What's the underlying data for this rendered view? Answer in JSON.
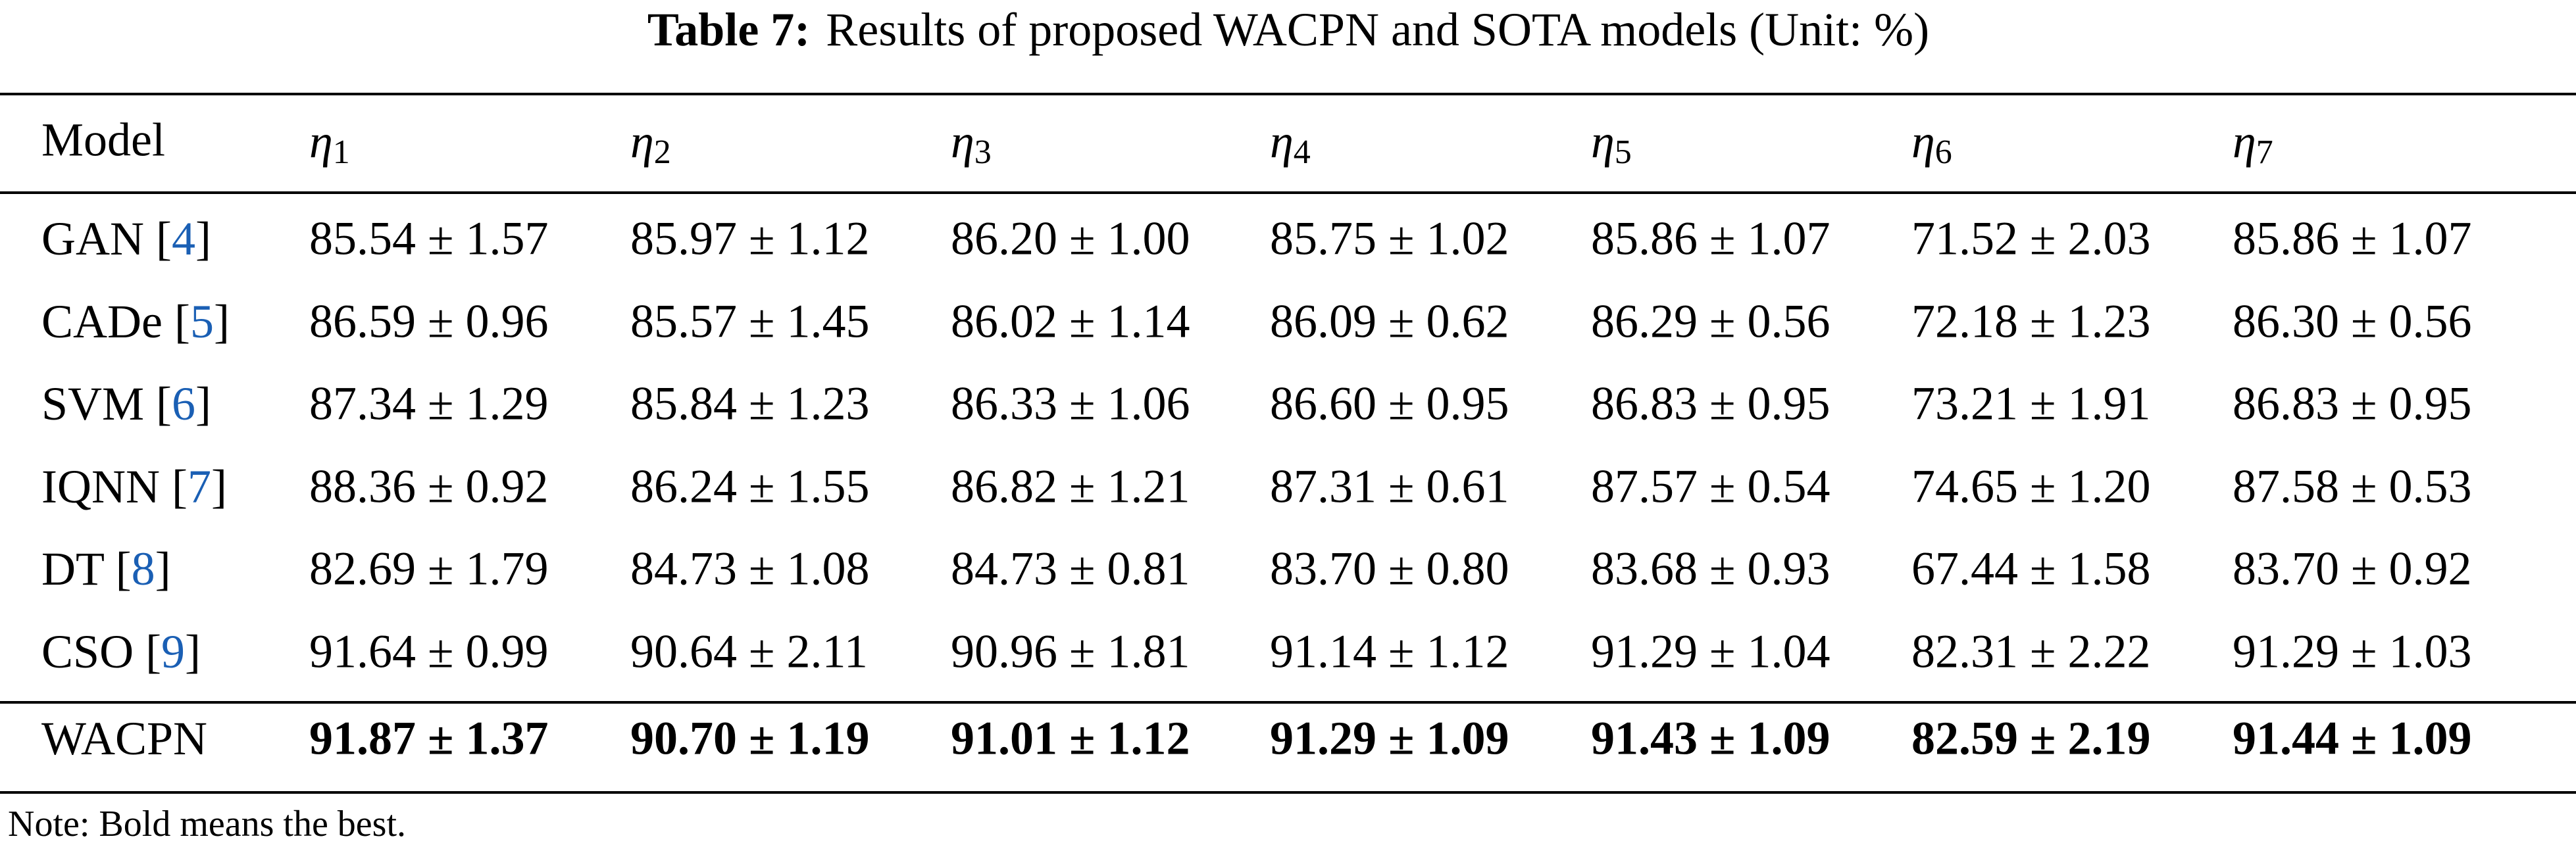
{
  "caption": {
    "label": "Table 7:",
    "text": "Results of proposed WACPN and SOTA models (Unit: %)"
  },
  "table": {
    "header": [
      "Model",
      {
        "sym": "η",
        "sub": "1"
      },
      {
        "sym": "η",
        "sub": "2"
      },
      {
        "sym": "η",
        "sub": "3"
      },
      {
        "sym": "η",
        "sub": "4"
      },
      {
        "sym": "η",
        "sub": "5"
      },
      {
        "sym": "η",
        "sub": "6"
      },
      {
        "sym": "η",
        "sub": "7"
      }
    ],
    "rows": [
      {
        "model": [
          "GAN [",
          "4",
          "]"
        ],
        "cells": [
          "85.54 ± 1.57",
          "85.97 ± 1.12",
          "86.20 ± 1.00",
          "85.75 ± 1.02",
          "85.86 ± 1.07",
          "71.52 ± 2.03",
          "85.86 ± 1.07"
        ]
      },
      {
        "model": [
          "CADe [",
          "5",
          "]"
        ],
        "cells": [
          "86.59 ± 0.96",
          "85.57 ± 1.45",
          "86.02 ± 1.14",
          "86.09 ± 0.62",
          "86.29 ± 0.56",
          "72.18 ± 1.23",
          "86.30 ± 0.56"
        ]
      },
      {
        "model": [
          "SVM [",
          "6",
          "]"
        ],
        "cells": [
          "87.34 ± 1.29",
          "85.84 ± 1.23",
          "86.33 ± 1.06",
          "86.60 ± 0.95",
          "86.83 ± 0.95",
          "73.21 ± 1.91",
          "86.83 ± 0.95"
        ]
      },
      {
        "model": [
          "IQNN [",
          "7",
          "]"
        ],
        "cells": [
          "88.36 ± 0.92",
          "86.24 ± 1.55",
          "86.82 ± 1.21",
          "87.31 ± 0.61",
          "87.57 ± 0.54",
          "74.65 ± 1.20",
          "87.58 ± 0.53"
        ]
      },
      {
        "model": [
          "DT [",
          "8",
          "]"
        ],
        "cells": [
          "82.69 ± 1.79",
          "84.73 ± 1.08",
          "84.73 ± 0.81",
          "83.70 ± 0.80",
          "83.68 ± 0.93",
          "67.44 ± 1.58",
          "83.70 ± 0.92"
        ]
      },
      {
        "model": [
          "CSO [",
          "9",
          "]"
        ],
        "cells": [
          "91.64 ± 0.99",
          "90.64 ± 2.11",
          "90.96 ± 1.81",
          "91.14 ± 1.12",
          "91.29 ± 1.04",
          "82.31 ± 2.22",
          "91.29 ± 1.03"
        ]
      },
      {
        "model": [
          "WACPN"
        ],
        "cells": [
          "91.87 ± 1.37",
          "90.70 ± 1.19",
          "91.01 ± 1.12",
          "91.29 ± 1.09",
          "91.43 ± 1.09",
          "82.59 ± 2.19",
          "91.44 ± 1.09"
        ],
        "bold": true
      }
    ]
  },
  "note": "Note: Bold means the best."
}
